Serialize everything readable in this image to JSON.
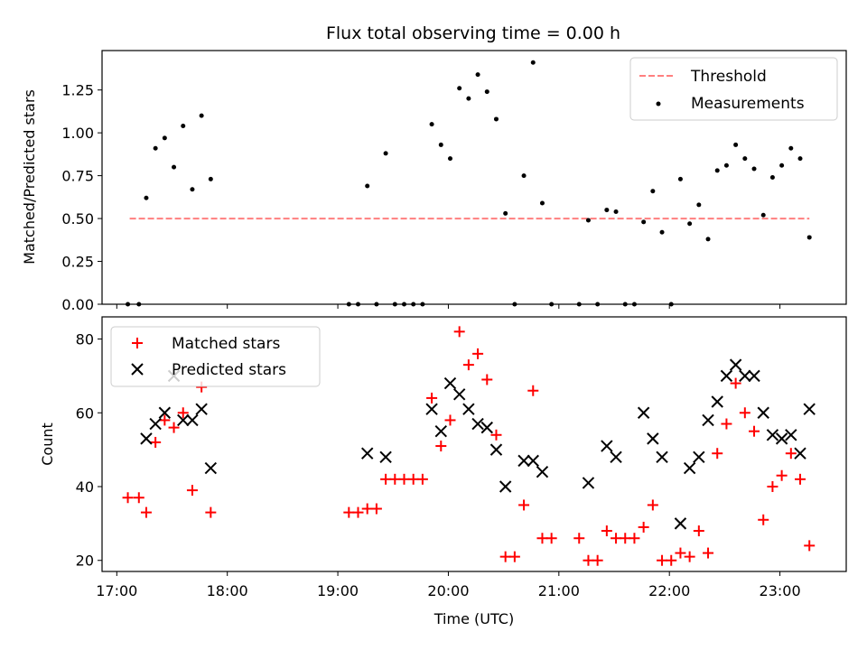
{
  "chart_data": [
    {
      "type": "scatter",
      "title": "Flux total observing time = 0.00 h",
      "ylabel": "Matched/Predicted stars",
      "xlabel": "",
      "xlim": [
        "16:52",
        "23:36"
      ],
      "ylim": [
        0,
        1.48
      ],
      "yticks": [
        0.0,
        0.25,
        0.5,
        0.75,
        1.0,
        1.25
      ],
      "ytick_labels": [
        "0.00",
        "0.25",
        "0.50",
        "0.75",
        "1.00",
        "1.25"
      ],
      "legend_position": "top-right",
      "series": [
        {
          "name": "Threshold",
          "kind": "dashed-line",
          "color": "#ff7f7f",
          "points": [
            [
              "17:07",
              0.5
            ],
            [
              "23:16",
              0.5
            ]
          ]
        },
        {
          "name": "Measurements",
          "kind": "dot",
          "color": "#000000",
          "points": [
            [
              "17:06",
              0.0
            ],
            [
              "17:12",
              0.0
            ],
            [
              "17:16",
              0.62
            ],
            [
              "17:21",
              0.91
            ],
            [
              "17:26",
              0.97
            ],
            [
              "17:31",
              0.8
            ],
            [
              "17:36",
              1.04
            ],
            [
              "17:41",
              0.67
            ],
            [
              "17:46",
              1.1
            ],
            [
              "17:51",
              0.73
            ],
            [
              "19:06",
              0.0
            ],
            [
              "19:11",
              0.0
            ],
            [
              "19:16",
              0.69
            ],
            [
              "19:21",
              0.0
            ],
            [
              "19:26",
              0.88
            ],
            [
              "19:31",
              0.0
            ],
            [
              "19:36",
              0.0
            ],
            [
              "19:41",
              0.0
            ],
            [
              "19:46",
              0.0
            ],
            [
              "19:51",
              1.05
            ],
            [
              "19:56",
              0.93
            ],
            [
              "20:01",
              0.85
            ],
            [
              "20:06",
              1.26
            ],
            [
              "20:11",
              1.2
            ],
            [
              "20:16",
              1.34
            ],
            [
              "20:21",
              1.24
            ],
            [
              "20:26",
              1.08
            ],
            [
              "20:31",
              0.53
            ],
            [
              "20:36",
              0.0
            ],
            [
              "20:41",
              0.75
            ],
            [
              "20:46",
              1.41
            ],
            [
              "20:51",
              0.59
            ],
            [
              "20:56",
              0.0
            ],
            [
              "21:11",
              0.0
            ],
            [
              "21:16",
              0.49
            ],
            [
              "21:21",
              0.0
            ],
            [
              "21:26",
              0.55
            ],
            [
              "21:31",
              0.54
            ],
            [
              "21:36",
              0.0
            ],
            [
              "21:41",
              0.0
            ],
            [
              "21:46",
              0.48
            ],
            [
              "21:51",
              0.66
            ],
            [
              "21:56",
              0.42
            ],
            [
              "22:01",
              0.0
            ],
            [
              "22:06",
              0.73
            ],
            [
              "22:11",
              0.47
            ],
            [
              "22:16",
              0.58
            ],
            [
              "22:21",
              0.38
            ],
            [
              "22:26",
              0.78
            ],
            [
              "22:31",
              0.81
            ],
            [
              "22:36",
              0.93
            ],
            [
              "22:41",
              0.85
            ],
            [
              "22:46",
              0.79
            ],
            [
              "22:51",
              0.52
            ],
            [
              "22:56",
              0.74
            ],
            [
              "23:01",
              0.81
            ],
            [
              "23:06",
              0.91
            ],
            [
              "23:11",
              0.85
            ],
            [
              "23:16",
              0.39
            ]
          ]
        }
      ]
    },
    {
      "type": "scatter",
      "title": "",
      "ylabel": "Count",
      "xlabel": "Time (UTC)",
      "xlim": [
        "16:52",
        "23:36"
      ],
      "ylim": [
        17,
        86
      ],
      "yticks": [
        20,
        40,
        60,
        80
      ],
      "ytick_labels": [
        "20",
        "40",
        "60",
        "80"
      ],
      "xticks": [
        "17:00",
        "18:00",
        "19:00",
        "20:00",
        "21:00",
        "22:00",
        "23:00"
      ],
      "xtick_labels": [
        "17:00",
        "18:00",
        "19:00",
        "20:00",
        "21:00",
        "22:00",
        "23:00"
      ],
      "legend_position": "top-left",
      "series": [
        {
          "name": "Matched stars",
          "kind": "plus",
          "color": "#ff0000",
          "points": [
            [
              "17:06",
              37
            ],
            [
              "17:12",
              37
            ],
            [
              "17:16",
              33
            ],
            [
              "17:21",
              52
            ],
            [
              "17:26",
              58
            ],
            [
              "17:31",
              56
            ],
            [
              "17:36",
              60
            ],
            [
              "17:41",
              39
            ],
            [
              "17:46",
              67
            ],
            [
              "17:51",
              33
            ],
            [
              "19:06",
              33
            ],
            [
              "19:11",
              33
            ],
            [
              "19:16",
              34
            ],
            [
              "19:21",
              34
            ],
            [
              "19:26",
              42
            ],
            [
              "19:31",
              42
            ],
            [
              "19:36",
              42
            ],
            [
              "19:41",
              42
            ],
            [
              "19:46",
              42
            ],
            [
              "19:51",
              64
            ],
            [
              "19:56",
              51
            ],
            [
              "20:01",
              58
            ],
            [
              "20:06",
              82
            ],
            [
              "20:11",
              73
            ],
            [
              "20:16",
              76
            ],
            [
              "20:21",
              69
            ],
            [
              "20:26",
              54
            ],
            [
              "20:31",
              21
            ],
            [
              "20:36",
              21
            ],
            [
              "20:41",
              35
            ],
            [
              "20:46",
              66
            ],
            [
              "20:51",
              26
            ],
            [
              "20:56",
              26
            ],
            [
              "21:11",
              26
            ],
            [
              "21:16",
              20
            ],
            [
              "21:21",
              20
            ],
            [
              "21:26",
              28
            ],
            [
              "21:31",
              26
            ],
            [
              "21:36",
              26
            ],
            [
              "21:41",
              26
            ],
            [
              "21:46",
              29
            ],
            [
              "21:51",
              35
            ],
            [
              "21:56",
              20
            ],
            [
              "22:01",
              20
            ],
            [
              "22:06",
              22
            ],
            [
              "22:11",
              21
            ],
            [
              "22:16",
              28
            ],
            [
              "22:21",
              22
            ],
            [
              "22:26",
              49
            ],
            [
              "22:31",
              57
            ],
            [
              "22:36",
              68
            ],
            [
              "22:41",
              60
            ],
            [
              "22:46",
              55
            ],
            [
              "22:51",
              31
            ],
            [
              "22:56",
              40
            ],
            [
              "23:01",
              43
            ],
            [
              "23:06",
              49
            ],
            [
              "23:11",
              42
            ],
            [
              "23:16",
              24
            ]
          ]
        },
        {
          "name": "Predicted stars",
          "kind": "x",
          "color": "#000000",
          "points": [
            [
              "17:16",
              53
            ],
            [
              "17:21",
              57
            ],
            [
              "17:26",
              60
            ],
            [
              "17:31",
              70
            ],
            [
              "17:36",
              58
            ],
            [
              "17:41",
              58
            ],
            [
              "17:46",
              61
            ],
            [
              "17:51",
              45
            ],
            [
              "19:16",
              49
            ],
            [
              "19:26",
              48
            ],
            [
              "19:51",
              61
            ],
            [
              "19:56",
              55
            ],
            [
              "20:01",
              68
            ],
            [
              "20:06",
              65
            ],
            [
              "20:11",
              61
            ],
            [
              "20:16",
              57
            ],
            [
              "20:21",
              56
            ],
            [
              "20:26",
              50
            ],
            [
              "20:31",
              40
            ],
            [
              "20:41",
              47
            ],
            [
              "20:46",
              47
            ],
            [
              "20:51",
              44
            ],
            [
              "21:16",
              41
            ],
            [
              "21:26",
              51
            ],
            [
              "21:31",
              48
            ],
            [
              "21:46",
              60
            ],
            [
              "21:51",
              53
            ],
            [
              "21:56",
              48
            ],
            [
              "22:06",
              30
            ],
            [
              "22:11",
              45
            ],
            [
              "22:16",
              48
            ],
            [
              "22:21",
              58
            ],
            [
              "22:26",
              63
            ],
            [
              "22:31",
              70
            ],
            [
              "22:36",
              73
            ],
            [
              "22:41",
              70
            ],
            [
              "22:46",
              70
            ],
            [
              "22:51",
              60
            ],
            [
              "22:56",
              54
            ],
            [
              "23:01",
              53
            ],
            [
              "23:06",
              54
            ],
            [
              "23:11",
              49
            ],
            [
              "23:16",
              61
            ]
          ]
        }
      ]
    }
  ]
}
